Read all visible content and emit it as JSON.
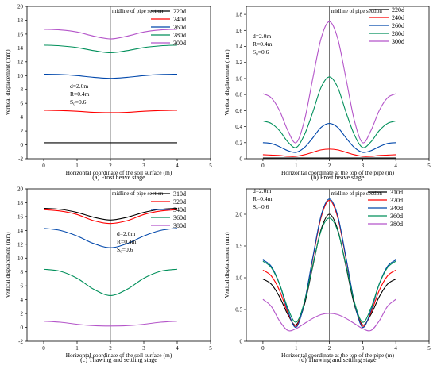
{
  "chart_data": [
    {
      "type": "line",
      "caption": "(a) Frost heave stage",
      "xlabel": "Horizontal coordinate of the soil surface (m)",
      "ylabel": "Vertical displacement (mm)",
      "xlim": [
        -0.5,
        5
      ],
      "ylim": [
        -2,
        20
      ],
      "xticks": [
        0,
        1,
        2,
        3,
        4,
        5
      ],
      "yticks": [
        -2,
        0,
        2,
        4,
        6,
        8,
        10,
        12,
        14,
        16,
        18,
        20
      ],
      "midline_label": "midline of pipe section",
      "midline_x": 2,
      "params": [
        "d=2.0m",
        "R=0.4m",
        "S₀=0.6"
      ],
      "legend": "top-right",
      "x": [
        0,
        0.5,
        1,
        1.5,
        2,
        2.5,
        3,
        3.5,
        4
      ],
      "series": [
        {
          "name": "220d",
          "color": "#000000",
          "values": [
            0.3,
            0.3,
            0.3,
            0.3,
            0.3,
            0.3,
            0.3,
            0.3,
            0.3
          ]
        },
        {
          "name": "240d",
          "color": "#ff0000",
          "values": [
            5.0,
            4.95,
            4.85,
            4.7,
            4.65,
            4.7,
            4.85,
            4.95,
            5.0
          ]
        },
        {
          "name": "260d",
          "color": "#0047ab",
          "values": [
            10.2,
            10.15,
            10.0,
            9.75,
            9.6,
            9.75,
            10.0,
            10.15,
            10.2
          ]
        },
        {
          "name": "280d",
          "color": "#008f5a",
          "values": [
            14.4,
            14.3,
            14.05,
            13.6,
            13.3,
            13.6,
            14.05,
            14.3,
            14.4
          ]
        },
        {
          "name": "300d",
          "color": "#b455c9",
          "values": [
            16.7,
            16.6,
            16.3,
            15.7,
            15.3,
            15.7,
            16.3,
            16.6,
            16.7
          ]
        }
      ]
    },
    {
      "type": "line",
      "caption": "(b) Frost heave stage",
      "xlabel": "Horizontal coordinate at the top of the pipe (m)",
      "ylabel": "Vertical displacement (mm)",
      "xlim": [
        -0.5,
        5
      ],
      "ylim": [
        0,
        1.9
      ],
      "xticks": [
        0,
        1,
        2,
        3,
        4,
        5
      ],
      "yticks": [
        0,
        0.2,
        0.4,
        0.6,
        0.8,
        1.0,
        1.2,
        1.4,
        1.6,
        1.8
      ],
      "midline_label": "midline of pipe section",
      "midline_x": 2,
      "params": [
        "d=2.0m",
        "R=0.4m",
        "S₀=0.6"
      ],
      "legend": "top-right",
      "x": [
        0,
        0.25,
        0.5,
        0.75,
        1,
        1.25,
        1.5,
        1.75,
        2,
        2.25,
        2.5,
        2.75,
        3,
        3.25,
        3.5,
        3.75,
        4
      ],
      "series": [
        {
          "name": "220d",
          "color": "#000000",
          "values": [
            0.01,
            0.01,
            0.01,
            0.01,
            0.01,
            0.01,
            0.01,
            0.01,
            0.01,
            0.01,
            0.01,
            0.01,
            0.01,
            0.01,
            0.01,
            0.01,
            0.01
          ]
        },
        {
          "name": "240d",
          "color": "#ff0000",
          "values": [
            0.05,
            0.045,
            0.04,
            0.03,
            0.03,
            0.05,
            0.08,
            0.11,
            0.12,
            0.11,
            0.08,
            0.05,
            0.03,
            0.03,
            0.04,
            0.045,
            0.05
          ]
        },
        {
          "name": "260d",
          "color": "#0047ab",
          "values": [
            0.2,
            0.19,
            0.15,
            0.1,
            0.08,
            0.14,
            0.26,
            0.39,
            0.44,
            0.39,
            0.26,
            0.14,
            0.08,
            0.1,
            0.15,
            0.19,
            0.2
          ]
        },
        {
          "name": "280d",
          "color": "#008f5a",
          "values": [
            0.47,
            0.44,
            0.35,
            0.21,
            0.14,
            0.3,
            0.58,
            0.89,
            1.02,
            0.89,
            0.58,
            0.3,
            0.14,
            0.21,
            0.35,
            0.44,
            0.47
          ]
        },
        {
          "name": "300d",
          "color": "#b455c9",
          "values": [
            0.81,
            0.76,
            0.6,
            0.35,
            0.2,
            0.48,
            1.0,
            1.5,
            1.71,
            1.5,
            1.0,
            0.48,
            0.2,
            0.35,
            0.6,
            0.76,
            0.81
          ]
        }
      ]
    },
    {
      "type": "line",
      "caption": "(c) Thawing and settling stage",
      "xlabel": "Horizontal coordinate of the soil surface (m)",
      "ylabel": "Vertical displacement (mm)",
      "xlim": [
        -0.5,
        5
      ],
      "ylim": [
        -2,
        20
      ],
      "xticks": [
        0,
        1,
        2,
        3,
        4,
        5
      ],
      "yticks": [
        -2,
        0,
        2,
        4,
        6,
        8,
        10,
        12,
        14,
        16,
        18,
        20
      ],
      "midline_label": "midline of pipe section",
      "midline_x": 2,
      "params": [
        "d=2.0m",
        "R=0.4m",
        "S₀=0.6"
      ],
      "legend": "top-right",
      "x": [
        0,
        0.5,
        1,
        1.5,
        2,
        2.5,
        3,
        3.5,
        4
      ],
      "series": [
        {
          "name": "310d",
          "color": "#000000",
          "values": [
            17.2,
            17.05,
            16.6,
            15.9,
            15.5,
            15.9,
            16.6,
            17.05,
            17.2
          ]
        },
        {
          "name": "320d",
          "color": "#ff0000",
          "values": [
            17.0,
            16.8,
            16.3,
            15.4,
            15.0,
            15.4,
            16.3,
            16.8,
            17.0
          ]
        },
        {
          "name": "340d",
          "color": "#0047ab",
          "values": [
            14.3,
            14.0,
            13.2,
            12.1,
            11.5,
            12.1,
            13.2,
            14.0,
            14.3
          ]
        },
        {
          "name": "360d",
          "color": "#008f5a",
          "values": [
            8.4,
            8.1,
            7.1,
            5.5,
            4.6,
            5.5,
            7.1,
            8.1,
            8.4
          ]
        },
        {
          "name": "380d",
          "color": "#b455c9",
          "values": [
            0.9,
            0.75,
            0.45,
            0.25,
            0.2,
            0.25,
            0.45,
            0.75,
            0.9
          ]
        }
      ]
    },
    {
      "type": "line",
      "caption": "(d) Thawing and settling stage",
      "xlabel": "Horizontal coordinate at the top of the pipe (m)",
      "ylabel": "Vertical displacement (mm)",
      "xlim": [
        -0.5,
        5
      ],
      "ylim": [
        0,
        2.4
      ],
      "xticks": [
        0,
        1,
        2,
        3,
        4,
        5
      ],
      "yticks": [
        0,
        0.5,
        1.0,
        1.5,
        2.0
      ],
      "midline_label": "midline of pipe section",
      "midline_x": 2,
      "params": [
        "d=2.0m",
        "R=0.4m",
        "S₀=0.6"
      ],
      "legend": "top-right",
      "x": [
        0,
        0.25,
        0.5,
        0.75,
        1,
        1.25,
        1.5,
        1.75,
        2,
        2.25,
        2.5,
        2.75,
        3,
        3.25,
        3.5,
        3.75,
        4
      ],
      "series": [
        {
          "name": "310d",
          "color": "#000000",
          "values": [
            0.98,
            0.9,
            0.7,
            0.42,
            0.26,
            0.58,
            1.18,
            1.76,
            2.0,
            1.76,
            1.18,
            0.58,
            0.26,
            0.42,
            0.7,
            0.9,
            0.98
          ]
        },
        {
          "name": "320d",
          "color": "#ff0000",
          "values": [
            1.12,
            1.03,
            0.8,
            0.45,
            0.24,
            0.62,
            1.3,
            1.95,
            2.22,
            1.95,
            1.3,
            0.62,
            0.24,
            0.45,
            0.8,
            1.03,
            1.12
          ]
        },
        {
          "name": "340d",
          "color": "#0047ab",
          "values": [
            1.28,
            1.18,
            0.9,
            0.48,
            0.22,
            0.62,
            1.32,
            1.98,
            2.24,
            1.98,
            1.32,
            0.62,
            0.22,
            0.48,
            0.9,
            1.18,
            1.28
          ]
        },
        {
          "name": "360d",
          "color": "#008f5a",
          "values": [
            1.26,
            1.16,
            0.9,
            0.52,
            0.3,
            0.62,
            1.2,
            1.74,
            1.94,
            1.74,
            1.2,
            0.62,
            0.3,
            0.52,
            0.9,
            1.16,
            1.26
          ]
        },
        {
          "name": "380d",
          "color": "#b455c9",
          "values": [
            0.66,
            0.55,
            0.32,
            0.17,
            0.2,
            0.28,
            0.36,
            0.42,
            0.44,
            0.42,
            0.36,
            0.28,
            0.2,
            0.17,
            0.32,
            0.55,
            0.66
          ]
        }
      ]
    }
  ]
}
